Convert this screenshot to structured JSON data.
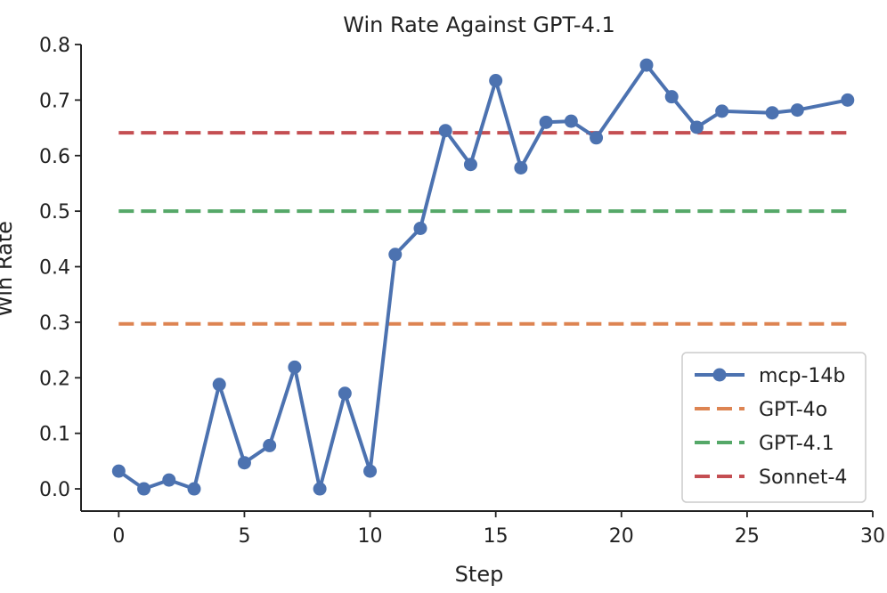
{
  "chart_data": {
    "type": "line",
    "title": "Win Rate Against GPT-4.1",
    "xlabel": "Step",
    "ylabel": "Win Rate",
    "xlim": [
      -1.5,
      30
    ],
    "ylim": [
      -0.04,
      0.8
    ],
    "xticks": [
      0,
      5,
      10,
      15,
      20,
      25,
      30
    ],
    "yticks": [
      0.0,
      0.1,
      0.2,
      0.3,
      0.4,
      0.5,
      0.6,
      0.7,
      0.8
    ],
    "grid": false,
    "legend_position": "bottom-right",
    "series": [
      {
        "name": "mcp-14b",
        "style": "solid-markers",
        "color": "#4c72b0",
        "x": [
          0,
          1,
          2,
          3,
          4,
          5,
          6,
          7,
          8,
          9,
          10,
          11,
          12,
          13,
          14,
          15,
          16,
          17,
          18,
          19,
          21,
          22,
          23,
          24,
          26,
          27,
          29
        ],
        "y": [
          0.032,
          0.0,
          0.016,
          0.0,
          0.188,
          0.047,
          0.078,
          0.219,
          0.0,
          0.172,
          0.032,
          0.422,
          0.469,
          0.645,
          0.584,
          0.735,
          0.578,
          0.66,
          0.662,
          0.632,
          0.763,
          0.706,
          0.651,
          0.68,
          0.677,
          0.682,
          0.7
        ]
      }
    ],
    "reference_lines": [
      {
        "name": "GPT-4o",
        "y": 0.297,
        "color": "#dd8452",
        "style": "dashed"
      },
      {
        "name": "GPT-4.1",
        "y": 0.5,
        "color": "#55a868",
        "style": "dashed"
      },
      {
        "name": "Sonnet-4",
        "y": 0.641,
        "color": "#c44e52",
        "style": "dashed"
      }
    ]
  }
}
